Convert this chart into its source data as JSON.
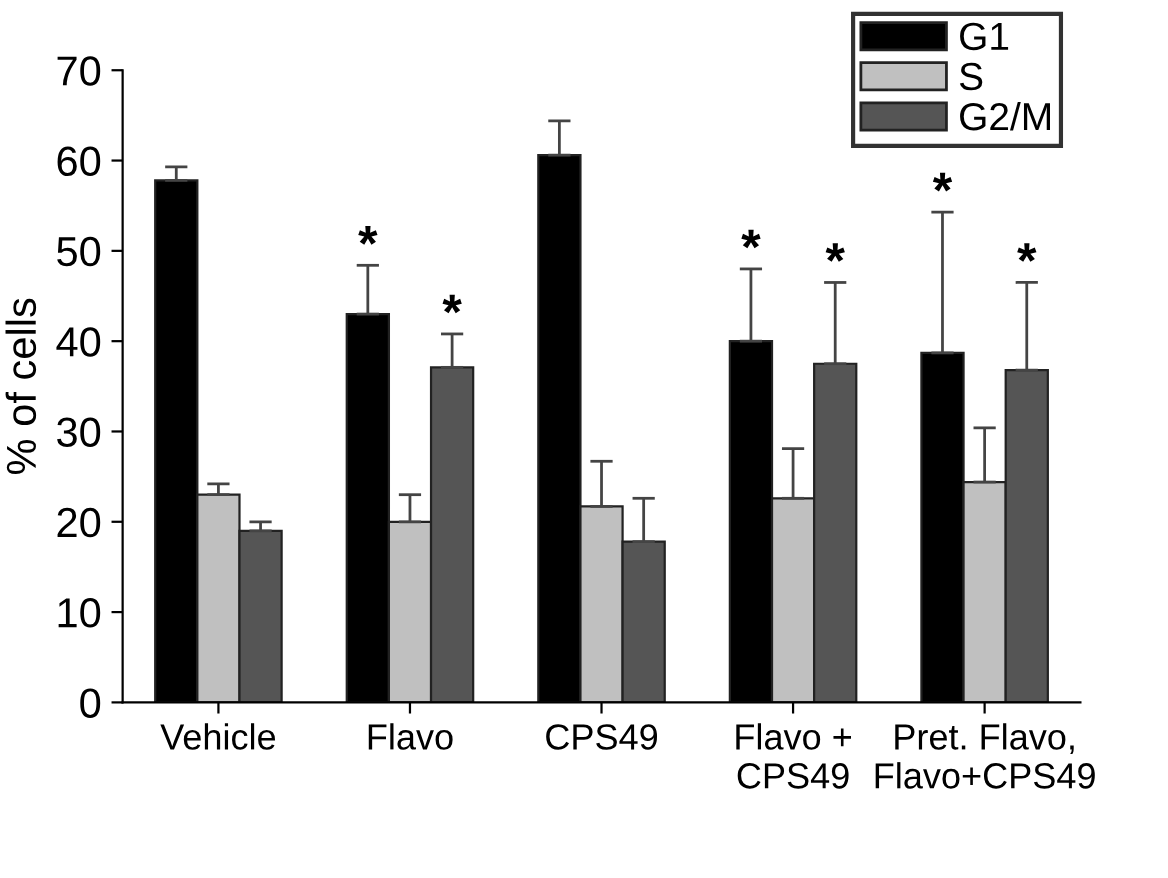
{
  "chart_data": {
    "type": "bar",
    "ylabel": "% of cells",
    "categories": [
      "Vehicle",
      "Flavo",
      "CPS49",
      "Flavo +\nCPS49",
      "Pret. Flavo,\nFlavo+CPS49"
    ],
    "series": [
      {
        "name": "G1",
        "color": "#000000",
        "values": [
          57.8,
          43.0,
          60.6,
          40.0,
          38.7
        ],
        "errors": [
          [
            57.8,
            59.3
          ],
          [
            43.0,
            48.4
          ],
          [
            60.6,
            64.4
          ],
          [
            40.0,
            48.0
          ],
          [
            38.7,
            54.3
          ]
        ]
      },
      {
        "name": "S",
        "color": "#c0c0c0",
        "values": [
          23.0,
          20.0,
          21.7,
          22.6,
          24.4
        ],
        "errors": [
          [
            23.0,
            24.2
          ],
          [
            20.0,
            23.0
          ],
          [
            21.7,
            26.7
          ],
          [
            22.6,
            28.1
          ],
          [
            24.4,
            30.4
          ]
        ]
      },
      {
        "name": "G2/M",
        "color": "#555555",
        "values": [
          19.0,
          37.1,
          17.8,
          37.5,
          36.8
        ],
        "errors": [
          [
            19.0,
            20.0
          ],
          [
            37.1,
            40.8
          ],
          [
            17.8,
            22.6
          ],
          [
            37.5,
            46.5
          ],
          [
            36.8,
            46.5
          ]
        ]
      }
    ],
    "annotations": [
      "*",
      "*",
      "*",
      "*",
      "*",
      "*"
    ],
    "ylim": [
      0,
      70
    ],
    "yticks": [
      0,
      10,
      20,
      30,
      40,
      50,
      60,
      70
    ],
    "grid": false,
    "legend": "top right"
  }
}
